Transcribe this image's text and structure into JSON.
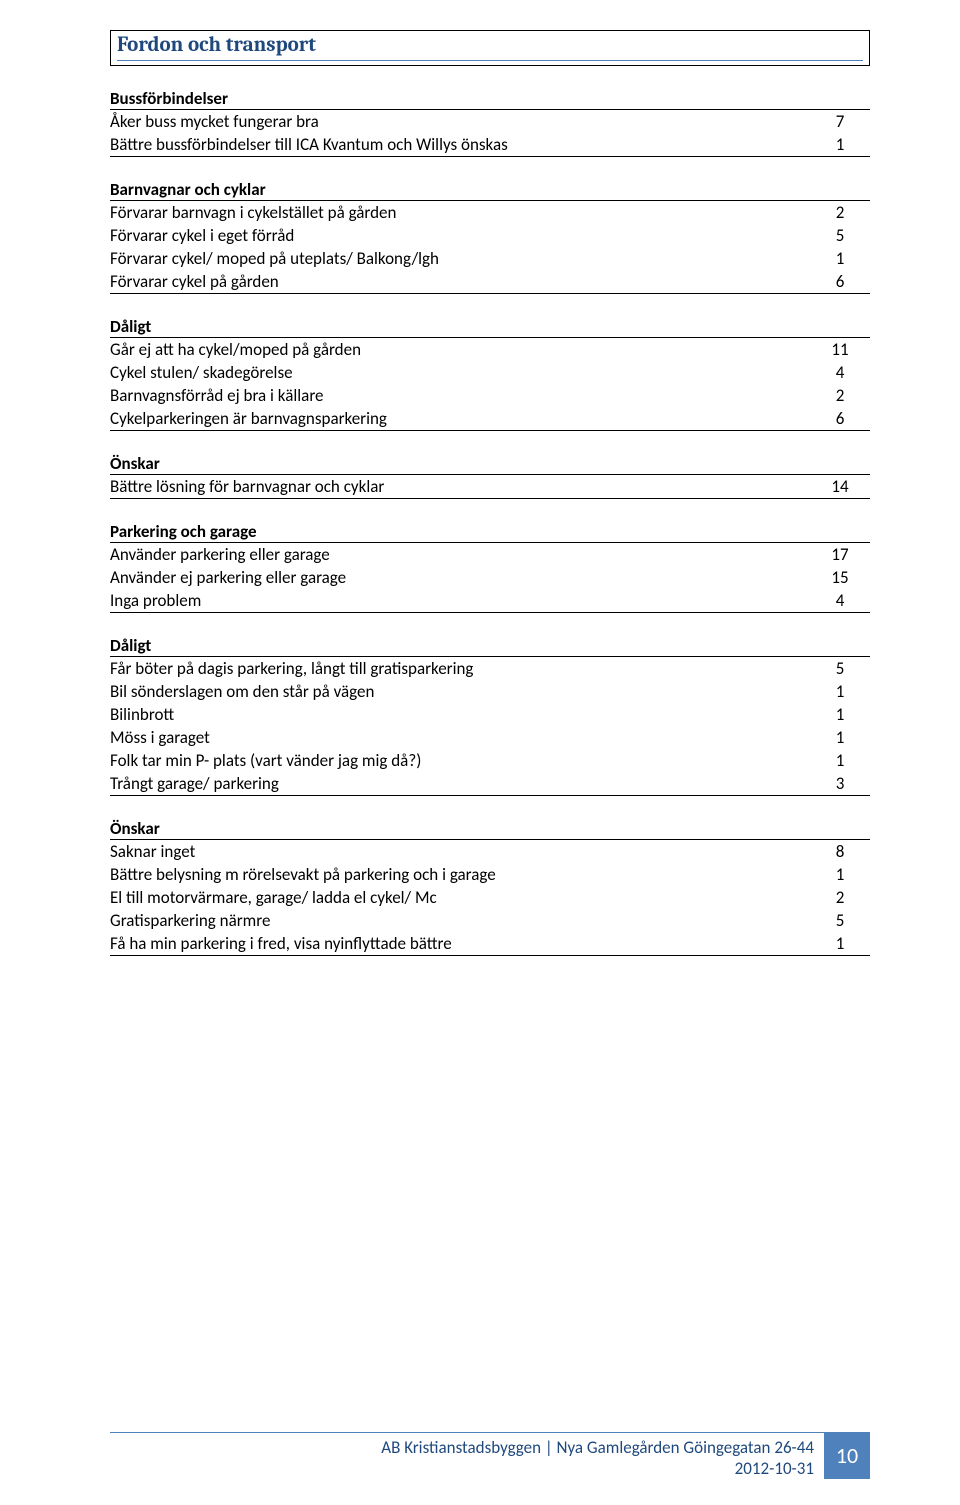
{
  "section_title": "Fordon och transport",
  "groups": [
    {
      "heading": "Bussförbindelser",
      "rows": [
        {
          "label": "Åker buss mycket fungerar bra",
          "value": 7
        },
        {
          "label": "Bättre bussförbindelser till ICA Kvantum och Willys önskas",
          "value": 1
        }
      ]
    },
    {
      "heading": "Barnvagnar och cyklar",
      "rows": [
        {
          "label": "Förvarar barnvagn i cykelstället på gården",
          "value": 2
        },
        {
          "label": "Förvarar cykel i eget förråd",
          "value": 5
        },
        {
          "label": "Förvarar cykel/ moped på uteplats/ Balkong/lgh",
          "value": 1
        },
        {
          "label": "Förvarar cykel på gården",
          "value": 6
        }
      ]
    },
    {
      "heading": "Dåligt",
      "rows": [
        {
          "label": "Går ej att ha cykel/moped på gården",
          "value": 11
        },
        {
          "label": "Cykel stulen/ skadegörelse",
          "value": 4
        },
        {
          "label": "Barnvagnsförråd ej bra i källare",
          "value": 2
        },
        {
          "label": "Cykelparkeringen är barnvagnsparkering",
          "value": 6
        }
      ]
    },
    {
      "heading": "Önskar",
      "rows": [
        {
          "label": "Bättre lösning för barnvagnar och cyklar",
          "value": 14
        }
      ]
    },
    {
      "heading": "Parkering och garage",
      "rows": [
        {
          "label": "Använder parkering eller garage",
          "value": 17
        },
        {
          "label": "Använder ej parkering eller garage",
          "value": 15
        },
        {
          "label": "Inga problem",
          "value": 4
        }
      ]
    },
    {
      "heading": "Dåligt",
      "rows": [
        {
          "label": "Får böter på dagis parkering, långt till gratisparkering",
          "value": 5
        },
        {
          "label": "Bil sönderslagen om den står på vägen",
          "value": 1
        },
        {
          "label": "Bilinbrott",
          "value": 1
        },
        {
          "label": "Möss i garaget",
          "value": 1
        },
        {
          "label": "Folk tar min P- plats (vart vänder jag mig då?)",
          "value": 1
        },
        {
          "label": "Trångt garage/ parkering",
          "value": 3
        }
      ]
    },
    {
      "heading": "Önskar",
      "rows": [
        {
          "label": "Saknar inget",
          "value": 8
        },
        {
          "label": "Bättre belysning m rörelsevakt på parkering och i garage",
          "value": 1
        },
        {
          "label": "El till motorvärmare, garage/ ladda el cykel/ Mc",
          "value": 2
        },
        {
          "label": "Gratisparkering närmre",
          "value": 5
        },
        {
          "label": "Få ha min parkering i fred, visa nyinflyttade bättre",
          "value": 1
        }
      ]
    }
  ],
  "footer": {
    "line1": "AB Kristianstadsbyggen | Nya Gamlegården Göingegatan 26-44",
    "line2": "2012-10-31",
    "page_number": 10
  }
}
